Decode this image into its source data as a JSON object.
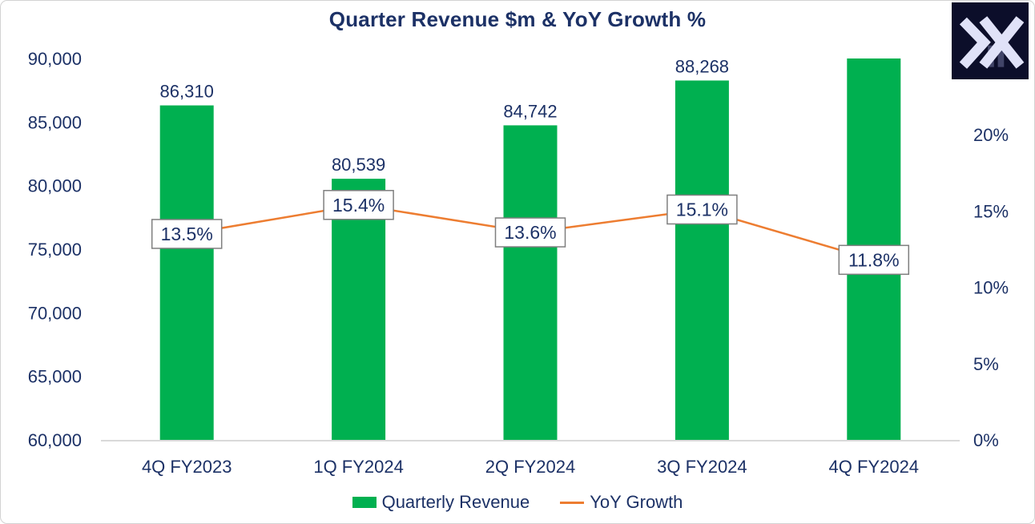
{
  "logo": {
    "name": "x-chevron-logo",
    "background": "#0c0e2a",
    "glyph_color": "#e0e2f8",
    "accent_bar_color": "#414468"
  },
  "chart_data": {
    "type": "combo_bar_line",
    "title": "Quarter Revenue $m & YoY Growth %",
    "categories": [
      "4Q FY2023",
      "1Q FY2024",
      "2Q FY2024",
      "3Q FY2024",
      "4Q FY2024"
    ],
    "series": [
      {
        "name": "Quarterly Revenue",
        "type": "bar",
        "axis": "left",
        "color": "#00B050",
        "values": [
          86310,
          80539,
          84742,
          88268,
          90000
        ],
        "data_labels": [
          "86,310",
          "80,539",
          "84,742",
          "88,268",
          ""
        ]
      },
      {
        "name": "YoY Growth",
        "type": "line",
        "axis": "right",
        "color": "#ED7D31",
        "values": [
          13.5,
          15.4,
          13.6,
          15.1,
          11.8
        ],
        "data_labels": [
          "13.5%",
          "15.4%",
          "13.6%",
          "15.1%",
          "11.8%"
        ]
      }
    ],
    "left_axis": {
      "min": 60000,
      "max": 90000,
      "step": 5000,
      "tick_labels": [
        "60,000",
        "65,000",
        "70,000",
        "75,000",
        "80,000",
        "85,000",
        "90,000"
      ]
    },
    "right_axis": {
      "min": 0,
      "max": 25,
      "step": 5,
      "tick_labels": [
        "0%",
        "5%",
        "10%",
        "15%",
        "20%"
      ]
    },
    "grid": false,
    "legend_position": "bottom",
    "colors": {
      "text": "#1c3166",
      "axis_line": "#d9d9d9",
      "label_box_border": "#7f7f7f",
      "label_box_fill": "#ffffff"
    }
  }
}
